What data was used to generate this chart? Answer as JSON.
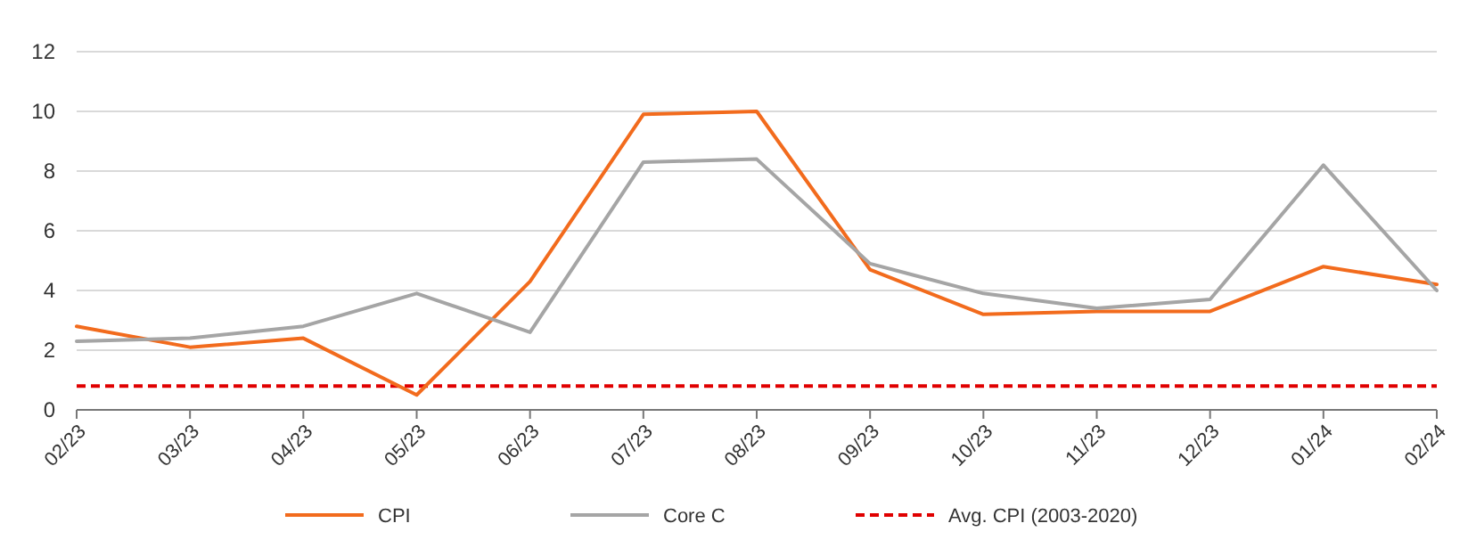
{
  "chart_data": {
    "type": "line",
    "categories": [
      "02/23",
      "03/23",
      "04/23",
      "05/23",
      "06/23",
      "07/23",
      "08/23",
      "09/23",
      "10/23",
      "11/23",
      "12/23",
      "01/24",
      "02/24"
    ],
    "series": [
      {
        "name": "CPI",
        "color": "#f26b1d",
        "values": [
          2.8,
          2.1,
          2.4,
          0.5,
          4.3,
          9.9,
          10.0,
          4.7,
          3.2,
          3.3,
          3.3,
          4.8,
          4.2
        ]
      },
      {
        "name": "Core C",
        "color": "#a5a5a5",
        "values": [
          2.3,
          2.4,
          2.8,
          3.9,
          2.6,
          8.3,
          8.4,
          4.9,
          3.9,
          3.4,
          3.7,
          8.2,
          4.0
        ]
      }
    ],
    "ref_lines": [
      {
        "axis": "y",
        "value": 0.8,
        "label": "Avg. CPI (2003-2020)",
        "color": "#e00000",
        "line_style": "dashed"
      }
    ],
    "ylim": [
      0,
      12
    ],
    "yticks": [
      0,
      2,
      4,
      6,
      8,
      10,
      12
    ],
    "grid": "y",
    "legend": "bottom",
    "marker": "none",
    "line_style": "solid"
  }
}
